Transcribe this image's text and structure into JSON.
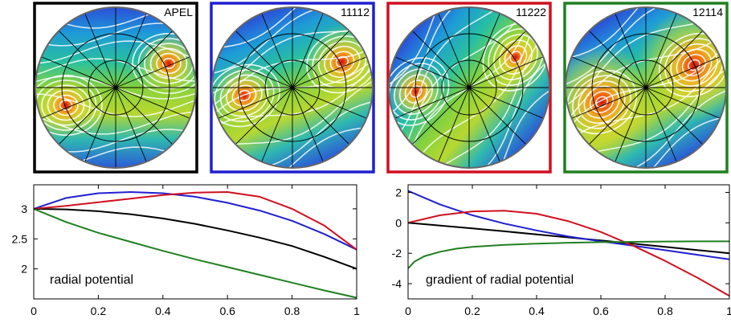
{
  "panels": [
    {
      "label": "APEL",
      "frame_color": "#000000",
      "rotation_deg": 0,
      "hotspots": [
        [
          -0.62,
          -0.22,
          0.12
        ],
        [
          0.66,
          0.3,
          0.12
        ]
      ]
    },
    {
      "label": "11112",
      "frame_color": "#2020d0",
      "rotation_deg": 22,
      "hotspots": [
        [
          -0.6,
          -0.1,
          0.13
        ],
        [
          0.62,
          0.32,
          0.14
        ]
      ]
    },
    {
      "label": "11222",
      "frame_color": "#d01020",
      "rotation_deg": 50,
      "hotspots": [
        [
          -0.66,
          -0.05,
          0.11
        ],
        [
          0.58,
          0.38,
          0.11
        ]
      ]
    },
    {
      "label": "12114",
      "frame_color": "#208020",
      "rotation_deg": 30,
      "hotspots": [
        [
          -0.55,
          -0.18,
          0.22
        ],
        [
          0.6,
          0.28,
          0.22
        ]
      ]
    }
  ],
  "chart_data": [
    {
      "type": "line",
      "annotation": "radial potential",
      "xlim": [
        0,
        1
      ],
      "ylim": [
        1.5,
        3.4
      ],
      "xticks": [
        0,
        0.2,
        0.4,
        0.6,
        0.8,
        1
      ],
      "xtick_labels": [
        "0",
        "0.2",
        "0.4",
        "0.6",
        "0.8",
        "1"
      ],
      "yticks": [
        2,
        2.5,
        3
      ],
      "ytick_labels": [
        "2",
        "2.5",
        "3"
      ],
      "series": [
        {
          "color": "#000000",
          "x": [
            0,
            0.1,
            0.2,
            0.3,
            0.4,
            0.5,
            0.6,
            0.7,
            0.8,
            0.9,
            1.0
          ],
          "y": [
            3.0,
            2.99,
            2.96,
            2.91,
            2.84,
            2.75,
            2.64,
            2.52,
            2.38,
            2.2,
            2.0
          ]
        },
        {
          "color": "#2020d0",
          "x": [
            0,
            0.1,
            0.2,
            0.3,
            0.4,
            0.5,
            0.6,
            0.7,
            0.8,
            0.9,
            1.0
          ],
          "y": [
            3.0,
            3.18,
            3.26,
            3.28,
            3.26,
            3.2,
            3.1,
            2.97,
            2.8,
            2.58,
            2.32
          ]
        },
        {
          "color": "#d01020",
          "x": [
            0,
            0.1,
            0.2,
            0.3,
            0.4,
            0.5,
            0.6,
            0.7,
            0.8,
            0.9,
            1.0
          ],
          "y": [
            3.0,
            3.05,
            3.11,
            3.17,
            3.23,
            3.27,
            3.28,
            3.2,
            3.0,
            2.72,
            2.32
          ]
        },
        {
          "color": "#208020",
          "x": [
            0,
            0.1,
            0.2,
            0.3,
            0.4,
            0.5,
            0.6,
            0.7,
            0.8,
            0.9,
            1.0
          ],
          "y": [
            3.0,
            2.78,
            2.6,
            2.45,
            2.3,
            2.16,
            2.03,
            1.9,
            1.77,
            1.64,
            1.52
          ]
        }
      ]
    },
    {
      "type": "line",
      "annotation": "gradient of radial potential",
      "xlim": [
        0,
        1
      ],
      "ylim": [
        -5,
        2.5
      ],
      "xticks": [
        0,
        0.2,
        0.4,
        0.6,
        0.8,
        1
      ],
      "xtick_labels": [
        "0",
        "0.2",
        "0.4",
        "0.6",
        "0.8",
        "1"
      ],
      "yticks": [
        -4,
        -2,
        0,
        2
      ],
      "ytick_labels": [
        "-4",
        "-2",
        "0",
        "2"
      ],
      "series": [
        {
          "color": "#000000",
          "x": [
            0,
            0.1,
            0.2,
            0.3,
            0.4,
            0.5,
            0.6,
            0.7,
            0.8,
            0.9,
            1.0
          ],
          "y": [
            0.0,
            -0.18,
            -0.37,
            -0.56,
            -0.76,
            -0.96,
            -1.16,
            -1.37,
            -1.58,
            -1.79,
            -2.0
          ]
        },
        {
          "color": "#2020d0",
          "x": [
            0,
            0.1,
            0.2,
            0.3,
            0.4,
            0.5,
            0.6,
            0.7,
            0.8,
            0.9,
            1.0
          ],
          "y": [
            2.1,
            1.2,
            0.5,
            -0.05,
            -0.5,
            -0.9,
            -1.22,
            -1.5,
            -1.8,
            -2.1,
            -2.4
          ]
        },
        {
          "color": "#d01020",
          "x": [
            0,
            0.1,
            0.2,
            0.3,
            0.4,
            0.5,
            0.6,
            0.7,
            0.8,
            0.9,
            1.0
          ],
          "y": [
            0.0,
            0.5,
            0.75,
            0.8,
            0.6,
            0.1,
            -0.6,
            -1.5,
            -2.5,
            -3.6,
            -4.8
          ]
        },
        {
          "color": "#208020",
          "x": [
            0,
            0.02,
            0.05,
            0.1,
            0.15,
            0.2,
            0.3,
            0.4,
            0.5,
            0.6,
            0.7,
            0.8,
            0.9,
            1.0
          ],
          "y": [
            -3.0,
            -2.55,
            -2.2,
            -1.9,
            -1.7,
            -1.58,
            -1.45,
            -1.37,
            -1.31,
            -1.27,
            -1.25,
            -1.23,
            -1.22,
            -1.22
          ]
        }
      ]
    }
  ]
}
